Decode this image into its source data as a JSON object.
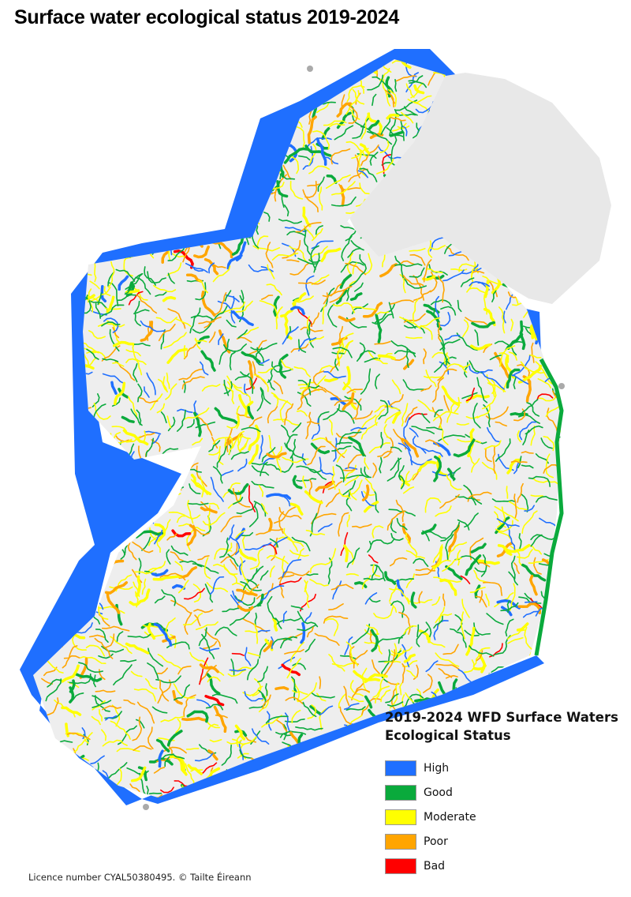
{
  "title": "Surface water ecological status 2019-2024",
  "legend": {
    "title_line1": "2019-2024 WFD Surface Waters",
    "title_line2": "Ecological Status",
    "items": [
      {
        "label": "High",
        "color": "#1f6fff"
      },
      {
        "label": "Good",
        "color": "#0aaa3c"
      },
      {
        "label": "Moderate",
        "color": "#ffff00"
      },
      {
        "label": "Poor",
        "color": "#ffa500"
      },
      {
        "label": "Bad",
        "color": "#ff0000"
      }
    ]
  },
  "footer": "Licence number CYAL50380495. © Tailte Éireann",
  "colors": {
    "land": "#eeeeee",
    "northern_ireland": "#e8e8e8",
    "coastal_high": "#1f6fff"
  }
}
